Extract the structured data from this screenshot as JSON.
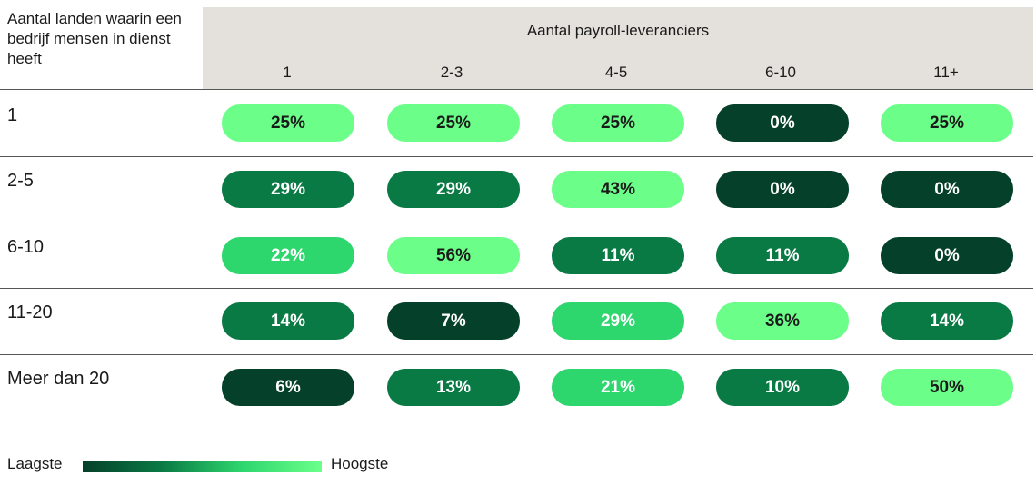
{
  "chart_data": {
    "type": "heatmap",
    "row_header": "Aantal landen waarin een bedrijf mensen in dienst heeft",
    "column_title": "Aantal payroll-leveranciers",
    "columns": [
      "1",
      "2-3",
      "4-5",
      "6-10",
      "11+"
    ],
    "rows": [
      "1",
      "2-5",
      "6-10",
      "11-20",
      "Meer dan 20"
    ],
    "values": [
      [
        25,
        25,
        25,
        0,
        25
      ],
      [
        29,
        29,
        43,
        0,
        0
      ],
      [
        22,
        56,
        11,
        11,
        0
      ],
      [
        14,
        7,
        29,
        36,
        14
      ],
      [
        6,
        13,
        21,
        10,
        50
      ]
    ],
    "value_labels": [
      [
        "25%",
        "25%",
        "25%",
        "0%",
        "25%"
      ],
      [
        "29%",
        "29%",
        "43%",
        "0%",
        "0%"
      ],
      [
        "22%",
        "56%",
        "11%",
        "11%",
        "0%"
      ],
      [
        "14%",
        "7%",
        "29%",
        "36%",
        "14%"
      ],
      [
        "6%",
        "13%",
        "21%",
        "10%",
        "50%"
      ]
    ],
    "legend": {
      "low": "Laagste",
      "high": "Hoogste"
    },
    "colors": {
      "lightest": "#6bff8a",
      "light": "#2ed66e",
      "medium": "#0a7a45",
      "dark": "#05402a"
    },
    "color_levels": [
      [
        "lightest",
        "lightest",
        "lightest",
        "dark",
        "lightest"
      ],
      [
        "medium",
        "medium",
        "lightest",
        "dark",
        "dark"
      ],
      [
        "light",
        "lightest",
        "medium",
        "medium",
        "dark"
      ],
      [
        "medium",
        "dark",
        "light",
        "lightest",
        "medium"
      ],
      [
        "dark",
        "medium",
        "light",
        "medium",
        "lightest"
      ]
    ],
    "text_colors": {
      "lightest": "#1a1a1a",
      "light": "#ffffff",
      "medium": "#ffffff",
      "dark": "#ffffff"
    }
  }
}
